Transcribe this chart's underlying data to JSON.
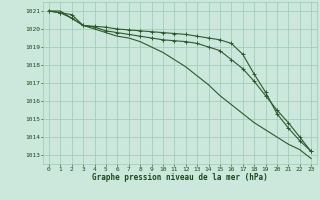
{
  "x": [
    0,
    1,
    2,
    3,
    4,
    5,
    6,
    7,
    8,
    9,
    10,
    11,
    12,
    13,
    14,
    15,
    16,
    17,
    18,
    19,
    20,
    21,
    22,
    23
  ],
  "line1": [
    1021.0,
    1020.9,
    1020.8,
    1020.2,
    1020.1,
    1019.9,
    1019.8,
    1019.7,
    1019.6,
    1019.5,
    1019.4,
    1019.35,
    1019.3,
    1019.2,
    1019.0,
    1018.8,
    1018.3,
    1017.8,
    1017.1,
    1016.3,
    1015.5,
    1014.8,
    1014.0,
    1013.2
  ],
  "line2": [
    1021.0,
    1020.9,
    1020.6,
    1020.2,
    1020.15,
    1020.1,
    1020.0,
    1019.95,
    1019.9,
    1019.85,
    1019.8,
    1019.75,
    1019.7,
    1019.6,
    1019.5,
    1019.4,
    1019.2,
    1018.6,
    1017.5,
    1016.5,
    1015.3,
    1014.5,
    1013.8,
    1013.2
  ],
  "line3": [
    1021.0,
    1021.0,
    1020.6,
    1020.2,
    1020.0,
    1019.8,
    1019.6,
    1019.5,
    1019.3,
    1019.0,
    1018.7,
    1018.3,
    1017.9,
    1017.4,
    1016.9,
    1016.3,
    1015.8,
    1015.3,
    1014.8,
    1014.4,
    1014.0,
    1013.6,
    1013.3,
    1012.8
  ],
  "bg_color": "#cce8dc",
  "grid_color": "#99ccb3",
  "line_color": "#2d5a2d",
  "xlabel": "Graphe pression niveau de la mer (hPa)",
  "xlabel_color": "#1a4a1a",
  "tick_color": "#1a4a1a",
  "ylim": [
    1012.5,
    1021.5
  ],
  "yticks": [
    1013,
    1014,
    1015,
    1016,
    1017,
    1018,
    1019,
    1020,
    1021
  ],
  "xlim": [
    -0.5,
    23.5
  ]
}
